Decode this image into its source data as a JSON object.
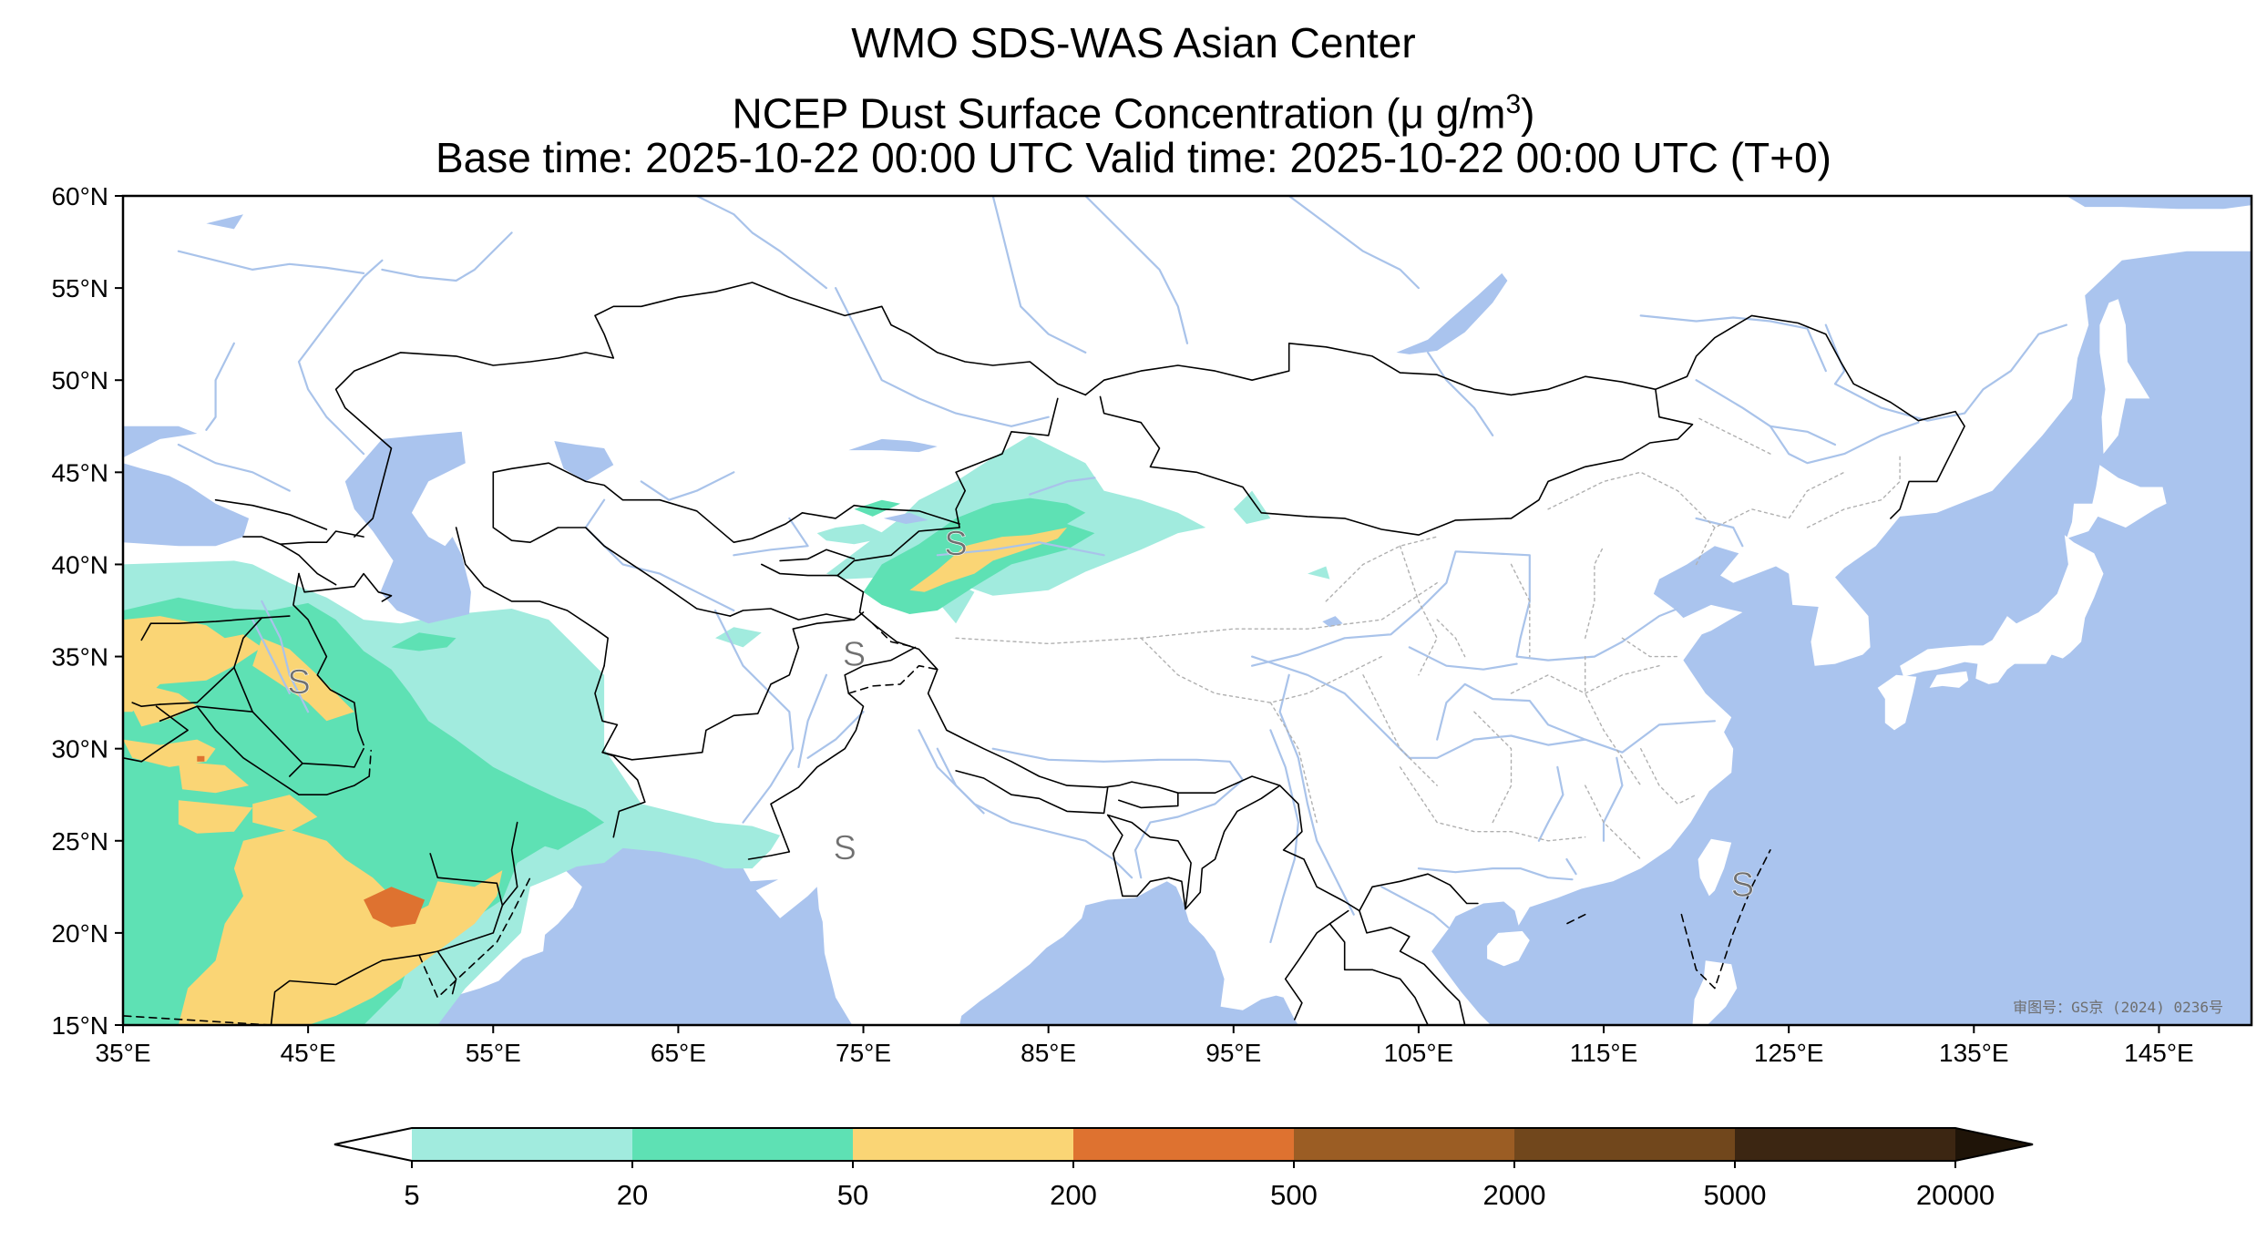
{
  "title": {
    "line1": "WMO SDS-WAS Asian Center",
    "line2_prefix": "NCEP Dust Surface Concentration (",
    "line2_unit_base": "μ g/m",
    "line2_unit_exp": "3",
    "line2_suffix": ")",
    "line3": "Base time: 2025-10-22 00:00 UTC Valid time: 2025-10-22 00:00 UTC (T+0)"
  },
  "map": {
    "lon_range": [
      35,
      150
    ],
    "lat_range": [
      15,
      60
    ],
    "lon_ticks": [
      {
        "value": 35,
        "label": "35°E"
      },
      {
        "value": 45,
        "label": "45°E"
      },
      {
        "value": 55,
        "label": "55°E"
      },
      {
        "value": 65,
        "label": "65°E"
      },
      {
        "value": 75,
        "label": "75°E"
      },
      {
        "value": 85,
        "label": "85°E"
      },
      {
        "value": 95,
        "label": "95°E"
      },
      {
        "value": 105,
        "label": "105°E"
      },
      {
        "value": 115,
        "label": "115°E"
      },
      {
        "value": 125,
        "label": "125°E"
      },
      {
        "value": 135,
        "label": "135°E"
      },
      {
        "value": 145,
        "label": "145°E"
      }
    ],
    "lat_ticks": [
      {
        "value": 15,
        "label": "15°N"
      },
      {
        "value": 20,
        "label": "20°N"
      },
      {
        "value": 25,
        "label": "25°N"
      },
      {
        "value": 30,
        "label": "30°N"
      },
      {
        "value": 35,
        "label": "35°N"
      },
      {
        "value": 40,
        "label": "40°N"
      },
      {
        "value": 45,
        "label": "45°N"
      },
      {
        "value": 50,
        "label": "50°N"
      },
      {
        "value": 55,
        "label": "55°N"
      },
      {
        "value": 60,
        "label": "60°N"
      }
    ],
    "colors": {
      "ocean": "#aac4ee",
      "land": "#ffffff",
      "river": "#a9c3ea",
      "border": "#000000",
      "province": "#b0b0b0"
    },
    "storm_markers": [
      {
        "lon": 44.5,
        "lat": 33.5,
        "label": "S"
      },
      {
        "lon": 74.5,
        "lat": 35.0,
        "label": "S"
      },
      {
        "lon": 80.0,
        "lat": 41.0,
        "label": "S"
      },
      {
        "lon": 74.0,
        "lat": 24.5,
        "label": "S"
      },
      {
        "lon": 122.5,
        "lat": 22.5,
        "label": "S"
      }
    ],
    "approval_number": "审图号：GS京 (2024) 0236号"
  },
  "dust_levels": [
    {
      "min": 5,
      "max": 20,
      "color": "#a1ebde"
    },
    {
      "min": 20,
      "max": 50,
      "color": "#5ee1b4"
    },
    {
      "min": 50,
      "max": 200,
      "color": "#fad575"
    },
    {
      "min": 200,
      "max": 500,
      "color": "#de7230"
    },
    {
      "min": 500,
      "max": 2000,
      "color": "#9b5d24"
    },
    {
      "min": 2000,
      "max": 5000,
      "color": "#71471c"
    },
    {
      "min": 5000,
      "max": 20000,
      "color": "#3c2612"
    }
  ],
  "colorbar": {
    "labels": [
      "5",
      "20",
      "50",
      "200",
      "500",
      "2000",
      "5000",
      "20000"
    ],
    "under_color": "#ffffff",
    "over_color": "#1f1408"
  }
}
